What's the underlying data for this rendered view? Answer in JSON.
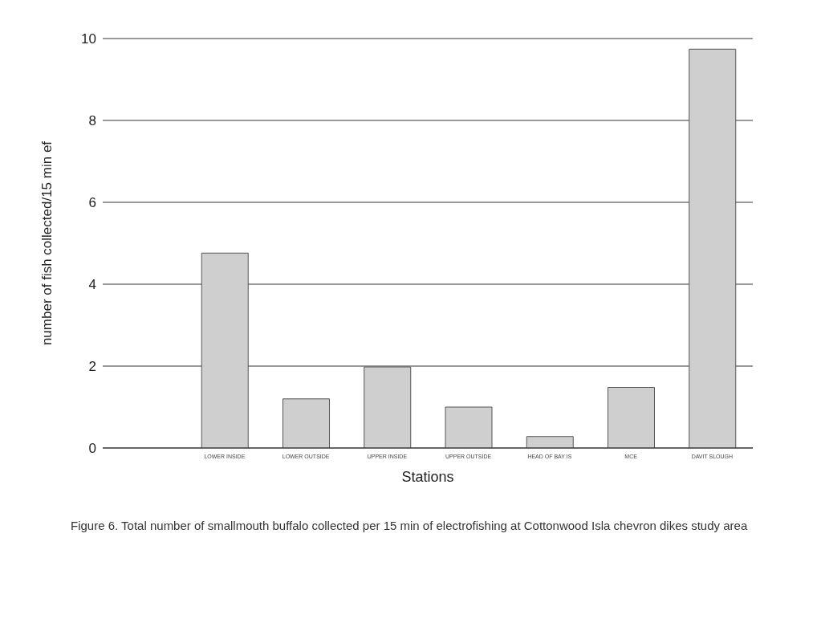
{
  "chart_data": {
    "type": "bar",
    "categories": [
      null,
      "LOWER INSIDE",
      "LOWER OUTSIDE",
      "UPPER INSIDE",
      "UPPER OUTSIDE",
      "HEAD OF BAY IS",
      "MCE",
      "DAVIT SLOUGH"
    ],
    "values": [
      null,
      4.76,
      1.2,
      1.98,
      1.0,
      0.28,
      1.48,
      9.74
    ],
    "color": "#cfcfcf",
    "xlabel": "Stations",
    "ylabel": "number of fish collected/15 min ef",
    "ylim": [
      0,
      10
    ],
    "yticks": [
      0,
      2,
      4,
      6,
      8,
      10
    ],
    "grid": "y",
    "annotations": [
      "Figure 6.  Total number of smallmouth buffalo collected per 15 min of electrofishing at Cottonwood Isla chevron dikes study area"
    ]
  }
}
